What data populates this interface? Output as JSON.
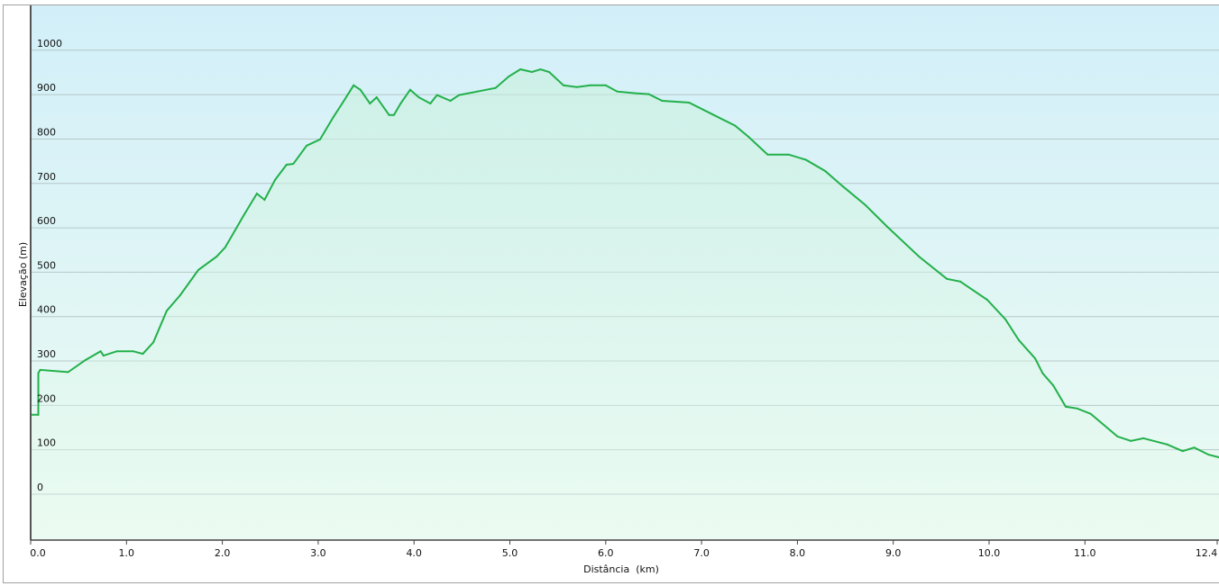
{
  "chart_data": {
    "type": "area",
    "title": "",
    "xlabel": "Distância  (km)",
    "ylabel": "Elevação (m)",
    "xlim": [
      0,
      12.4
    ],
    "ylim": [
      -100,
      1100
    ],
    "grid": true,
    "x_ticks": [
      "0.0",
      "1.0",
      "2.0",
      "3.0",
      "4.0",
      "5.0",
      "6.0",
      "7.0",
      "8.0",
      "9.0",
      "10.0",
      "11.0",
      "12.4"
    ],
    "x_tick_values": [
      0,
      1,
      2,
      3,
      4,
      5,
      6,
      7,
      8,
      9,
      10,
      11,
      12.4
    ],
    "y_ticks": [
      "0",
      "100",
      "200",
      "300",
      "400",
      "500",
      "600",
      "700",
      "800",
      "900",
      "1000"
    ],
    "y_tick_values": [
      0,
      100,
      200,
      300,
      400,
      500,
      600,
      700,
      800,
      900,
      1000
    ],
    "colors": {
      "line": "#22b04a",
      "background_top": "#d2eff9",
      "background_bottom": "#ecfbf2",
      "grid": "#b6c8c8"
    },
    "x": [
      0,
      0.08,
      0.08,
      0.1,
      0.39,
      0.57,
      0.73,
      0.76,
      0.9,
      1.07,
      1.17,
      1.28,
      1.42,
      1.56,
      1.75,
      1.94,
      2.03,
      2.22,
      2.36,
      2.44,
      2.55,
      2.67,
      2.74,
      2.88,
      3.02,
      3.16,
      3.25,
      3.37,
      3.44,
      3.54,
      3.61,
      3.74,
      3.79,
      3.86,
      3.96,
      4.05,
      4.17,
      4.24,
      4.38,
      4.47,
      4.66,
      4.85,
      4.99,
      5.11,
      5.23,
      5.32,
      5.41,
      5.56,
      5.7,
      5.84,
      6.0,
      6.12,
      6.31,
      6.45,
      6.59,
      6.87,
      7.11,
      7.35,
      7.49,
      7.69,
      7.91,
      8.09,
      8.29,
      8.47,
      8.71,
      8.94,
      9.27,
      9.56,
      9.7,
      9.98,
      10.17,
      10.31,
      10.48,
      10.56,
      10.67,
      10.8,
      10.92,
      11.06,
      11.34,
      11.48,
      11.61,
      11.86,
      12.02,
      12.14,
      12.29,
      12.4
    ],
    "y": [
      179,
      179,
      273,
      280,
      275,
      302,
      322,
      312,
      322,
      322,
      316,
      342,
      413,
      448,
      505,
      535,
      556,
      627,
      677,
      663,
      708,
      742,
      744,
      785,
      799,
      850,
      880,
      921,
      911,
      880,
      894,
      854,
      854,
      880,
      911,
      894,
      880,
      899,
      886,
      899,
      907,
      915,
      941,
      957,
      951,
      957,
      951,
      921,
      917,
      921,
      921,
      907,
      903,
      901,
      886,
      882,
      856,
      830,
      805,
      765,
      765,
      753,
      728,
      694,
      651,
      602,
      535,
      485,
      479,
      438,
      394,
      347,
      306,
      272,
      245,
      197,
      193,
      181,
      130,
      120,
      126,
      112,
      97,
      105,
      89,
      83
    ]
  }
}
